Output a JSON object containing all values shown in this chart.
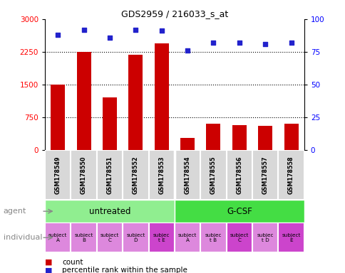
{
  "title": "GDS2959 / 216033_s_at",
  "samples": [
    "GSM178549",
    "GSM178550",
    "GSM178551",
    "GSM178552",
    "GSM178553",
    "GSM178554",
    "GSM178555",
    "GSM178556",
    "GSM178557",
    "GSM178558"
  ],
  "counts": [
    1500,
    2250,
    1200,
    2180,
    2450,
    270,
    590,
    570,
    555,
    590
  ],
  "percentile_ranks": [
    88,
    92,
    86,
    92,
    91,
    76,
    82,
    82,
    81,
    82
  ],
  "ylim_count": [
    0,
    3000
  ],
  "ylim_pct": [
    0,
    100
  ],
  "yticks_count": [
    0,
    750,
    1500,
    2250,
    3000
  ],
  "yticks_pct": [
    0,
    25,
    50,
    75,
    100
  ],
  "bar_color": "#cc0000",
  "dot_color": "#2222cc",
  "agent_labels": [
    "untreated",
    "G-CSF"
  ],
  "agent_color_untreated": "#90ee90",
  "agent_color_gcsf": "#44dd44",
  "individual_labels": [
    [
      "subject",
      "A"
    ],
    [
      "subject",
      "B"
    ],
    [
      "subject",
      "C"
    ],
    [
      "subject",
      "D"
    ],
    [
      "subjec",
      "t E"
    ],
    [
      "subject",
      "A"
    ],
    [
      "subjec",
      "t B"
    ],
    [
      "subject",
      "C"
    ],
    [
      "subjec",
      "t D"
    ],
    [
      "subject",
      "E"
    ]
  ],
  "individual_highlight": [
    4,
    7,
    9
  ],
  "individual_color_normal": "#dd88dd",
  "individual_color_highlight": "#cc44cc",
  "legend_count_label": "count",
  "legend_pct_label": "percentile rank within the sample",
  "grid_dotted_values": [
    750,
    1500,
    2250
  ],
  "sample_bg_color": "#d8d8d8",
  "n_untreated": 5,
  "n_total": 10
}
